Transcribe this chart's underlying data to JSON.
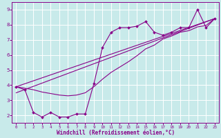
{
  "xlabel": "Windchill (Refroidissement éolien,°C)",
  "bg_color": "#c8eaea",
  "grid_color": "#ffffff",
  "line_color": "#880088",
  "xlim": [
    -0.5,
    23.5
  ],
  "ylim": [
    1.5,
    9.5
  ],
  "xticks": [
    0,
    1,
    2,
    3,
    4,
    5,
    6,
    7,
    8,
    9,
    10,
    11,
    12,
    13,
    14,
    15,
    16,
    17,
    18,
    19,
    20,
    21,
    22,
    23
  ],
  "yticks": [
    2,
    3,
    4,
    5,
    6,
    7,
    8,
    9
  ],
  "series1_x": [
    0,
    1,
    2,
    3,
    4,
    5,
    6,
    7,
    8,
    9,
    10,
    11,
    12,
    13,
    14,
    15,
    16,
    17,
    18,
    19,
    20,
    21,
    22,
    23
  ],
  "series1_y": [
    3.9,
    3.7,
    2.2,
    1.9,
    2.2,
    1.9,
    1.9,
    2.1,
    2.1,
    4.1,
    6.5,
    7.5,
    7.8,
    7.8,
    7.9,
    8.2,
    7.5,
    7.3,
    7.5,
    7.8,
    7.8,
    9.0,
    7.8,
    8.4
  ],
  "series2_x": [
    0,
    1,
    2,
    3,
    4,
    5,
    6,
    7,
    8,
    9,
    10,
    11,
    12,
    13,
    14,
    15,
    16,
    17,
    18,
    19,
    20,
    21,
    22,
    23
  ],
  "series2_y": [
    3.9,
    3.8,
    3.7,
    3.55,
    3.45,
    3.35,
    3.3,
    3.35,
    3.5,
    3.9,
    4.4,
    4.85,
    5.2,
    5.55,
    5.95,
    6.4,
    6.65,
    7.05,
    7.25,
    7.5,
    7.6,
    7.85,
    7.95,
    8.4
  ],
  "series3_x": [
    0,
    23
  ],
  "series3_y": [
    3.9,
    8.4
  ],
  "series4_x": [
    0,
    23
  ],
  "series4_y": [
    3.5,
    8.4
  ]
}
